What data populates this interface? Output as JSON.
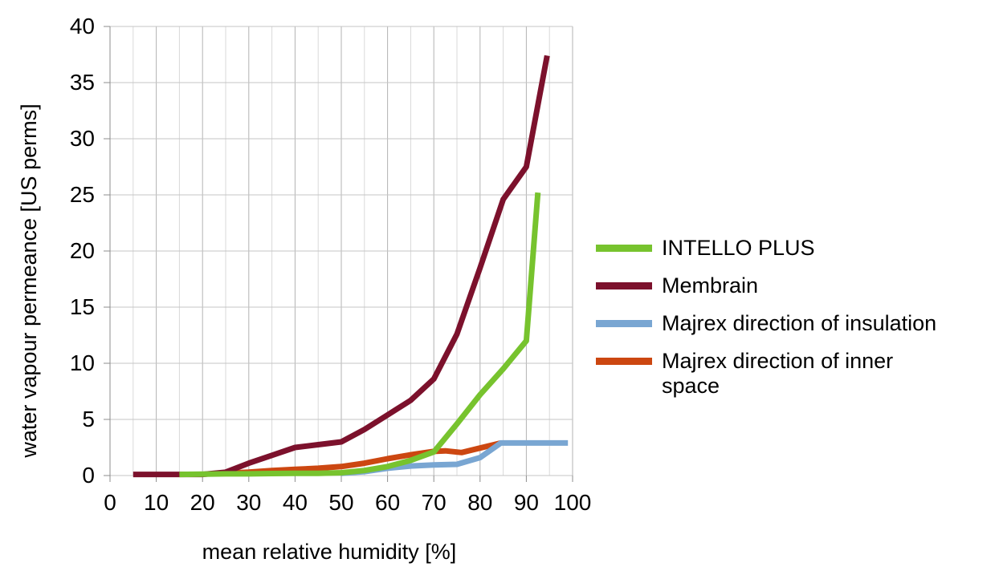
{
  "chart_data": {
    "type": "line",
    "title": "",
    "xlabel": "mean relative humidity [%]",
    "ylabel": "water vapour permeance [US perms]",
    "xlim": [
      0,
      100
    ],
    "ylim": [
      0,
      40
    ],
    "x_ticks": [
      0,
      10,
      20,
      30,
      40,
      50,
      60,
      70,
      80,
      90,
      100
    ],
    "y_ticks": [
      0,
      5,
      10,
      15,
      20,
      25,
      30,
      35,
      40
    ],
    "x_minor_step": 5,
    "grid": true,
    "legend_position": "right",
    "series": [
      {
        "name": "INTELLO PLUS",
        "color": "#77c32e",
        "points": [
          [
            15,
            0.1
          ],
          [
            20,
            0.12
          ],
          [
            25,
            0.15
          ],
          [
            30,
            0.15
          ],
          [
            35,
            0.18
          ],
          [
            40,
            0.2
          ],
          [
            45,
            0.2
          ],
          [
            50,
            0.25
          ],
          [
            55,
            0.45
          ],
          [
            60,
            0.8
          ],
          [
            65,
            1.35
          ],
          [
            70,
            2.1
          ],
          [
            75,
            4.6
          ],
          [
            80,
            7.2
          ],
          [
            85,
            9.5
          ],
          [
            90,
            12.0
          ],
          [
            92.5,
            25.2
          ]
        ]
      },
      {
        "name": "Membrain",
        "color": "#7c112c",
        "points": [
          [
            5,
            0.1
          ],
          [
            10,
            0.1
          ],
          [
            15,
            0.1
          ],
          [
            20,
            0.1
          ],
          [
            25,
            0.3
          ],
          [
            30,
            1.1
          ],
          [
            35,
            1.8
          ],
          [
            40,
            2.5
          ],
          [
            45,
            2.75
          ],
          [
            50,
            3.0
          ],
          [
            55,
            4.1
          ],
          [
            60,
            5.4
          ],
          [
            65,
            6.7
          ],
          [
            70,
            8.6
          ],
          [
            75,
            12.6
          ],
          [
            80,
            18.5
          ],
          [
            85,
            24.6
          ],
          [
            90,
            27.5
          ],
          [
            94.5,
            37.4
          ]
        ]
      },
      {
        "name": "Majrex direction of insulation",
        "color": "#79a6d2",
        "points": [
          [
            50,
            0.2
          ],
          [
            55,
            0.35
          ],
          [
            60,
            0.65
          ],
          [
            65,
            0.85
          ],
          [
            70,
            0.95
          ],
          [
            75,
            1.0
          ],
          [
            80,
            1.6
          ],
          [
            84.5,
            2.9
          ],
          [
            99,
            2.9
          ]
        ]
      },
      {
        "name": "Majrex direction of inner space",
        "color": "#cc4711",
        "points": [
          [
            25,
            0.2
          ],
          [
            30,
            0.3
          ],
          [
            35,
            0.45
          ],
          [
            40,
            0.55
          ],
          [
            45,
            0.65
          ],
          [
            50,
            0.8
          ],
          [
            55,
            1.1
          ],
          [
            60,
            1.5
          ],
          [
            65,
            1.85
          ],
          [
            70,
            2.15
          ],
          [
            72.5,
            2.2
          ],
          [
            76,
            2.05
          ],
          [
            80,
            2.45
          ],
          [
            84.5,
            2.9
          ]
        ]
      }
    ]
  }
}
